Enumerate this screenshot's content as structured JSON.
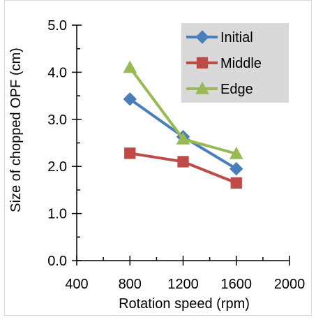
{
  "chart_data": {
    "type": "line",
    "title": "",
    "xlabel": "Rotation speed (rpm)",
    "ylabel": "Size of chopped OPF (cm)",
    "xlim": [
      400,
      2000
    ],
    "ylim": [
      0,
      5
    ],
    "x_ticks": [
      400,
      800,
      1200,
      1600,
      2000
    ],
    "y_ticks": [
      0,
      1,
      2,
      3,
      4,
      5
    ],
    "x_tick_labels": [
      "400",
      "800",
      "1200",
      "1600",
      "2000"
    ],
    "y_tick_labels": [
      "0.0",
      "1.0",
      "2.0",
      "3.0",
      "4.0",
      "5.0"
    ],
    "grid": false,
    "legend_position": "top-right",
    "x": [
      800,
      1200,
      1600
    ],
    "series": [
      {
        "name": "Initial",
        "values": [
          3.43,
          2.63,
          1.95
        ],
        "color": "#4a7ebb",
        "marker": "diamond"
      },
      {
        "name": "Middle",
        "values": [
          2.28,
          2.1,
          1.65
        ],
        "color": "#be4b48",
        "marker": "square"
      },
      {
        "name": "Edge",
        "values": [
          4.1,
          2.58,
          2.27
        ],
        "color": "#98b954",
        "marker": "triangle"
      }
    ]
  }
}
